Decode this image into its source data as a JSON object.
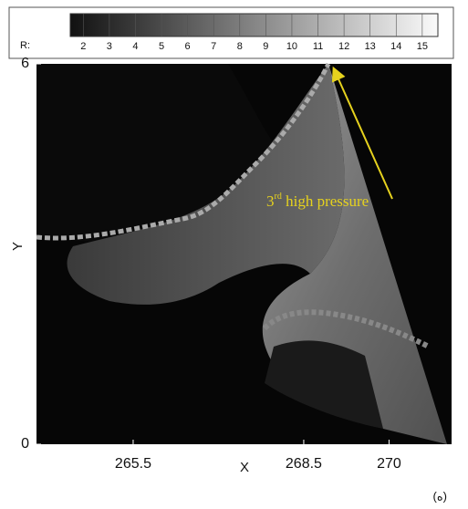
{
  "chart_data": {
    "type": "contour",
    "colorbar": {
      "label": "R:",
      "lim": [
        1.5,
        15.6
      ],
      "ticks": [
        2,
        3,
        4,
        5,
        6,
        7,
        8,
        9,
        10,
        11,
        12,
        13,
        14,
        15
      ]
    },
    "xlabel": "X",
    "ylabel": "Y",
    "xlim": [
      263.8,
      271.1
    ],
    "xticks": [
      265.5,
      268.5,
      270
    ],
    "ylim": [
      0,
      6
    ],
    "yticks": [
      0,
      6
    ],
    "annotation": {
      "number": "3",
      "superscript": "rd",
      "text": " high pressure",
      "color": "#e6d21e"
    },
    "panel_label": "(ه)"
  }
}
